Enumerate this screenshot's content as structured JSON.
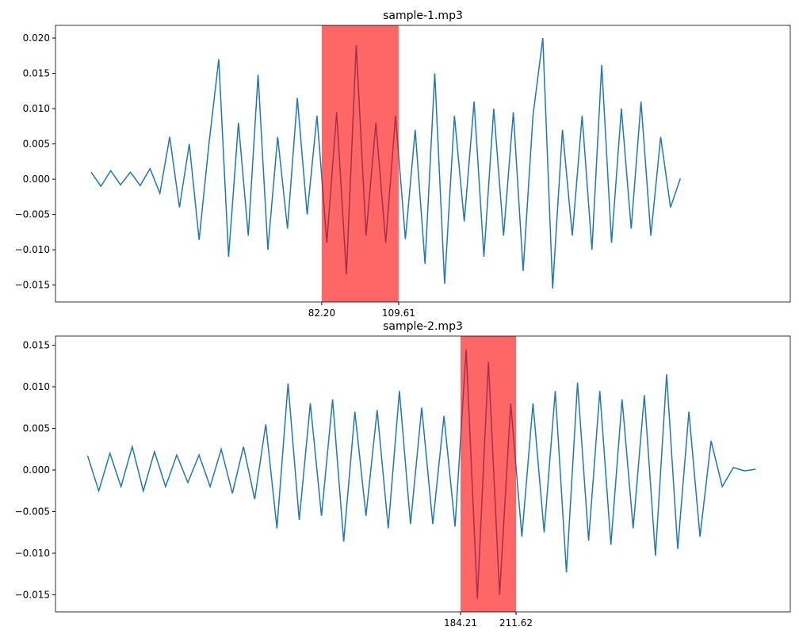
{
  "chart_data": [
    {
      "type": "line",
      "title": "sample-1.mp3",
      "color": "#1f77b4",
      "x": [
        0,
        3.5,
        7,
        10.5,
        14,
        17.5,
        21,
        24.5,
        28,
        31.5,
        35,
        38.5,
        42,
        45.5,
        49,
        52.5,
        56,
        59.5,
        63,
        66.5,
        70,
        73.5,
        77,
        80.5,
        84,
        87.5,
        91,
        94.5,
        98,
        101.5,
        105,
        108.5,
        112,
        115.5,
        119,
        122.5,
        126,
        129.5,
        133,
        136.5,
        140,
        143.5,
        147,
        150.5,
        154,
        157.5,
        161,
        164.5,
        168,
        171.5,
        175,
        178.5,
        182,
        185.5,
        189,
        192.5,
        196,
        199.5,
        203,
        206.5,
        210
      ],
      "values": [
        0.001,
        -0.001,
        0.0012,
        -0.0008,
        0.001,
        -0.0009,
        0.0015,
        -0.002,
        0.006,
        -0.004,
        0.005,
        -0.0086,
        0.005,
        0.017,
        -0.011,
        0.008,
        -0.008,
        0.0148,
        -0.01,
        0.006,
        -0.007,
        0.0115,
        -0.005,
        0.009,
        -0.009,
        0.0095,
        -0.0135,
        0.019,
        -0.008,
        0.008,
        -0.009,
        0.009,
        -0.0085,
        0.007,
        -0.012,
        0.015,
        -0.0148,
        0.009,
        -0.006,
        0.011,
        -0.011,
        0.01,
        -0.008,
        0.0095,
        -0.013,
        0.009,
        0.02,
        -0.0155,
        0.007,
        -0.008,
        0.009,
        -0.01,
        0.0162,
        -0.009,
        0.01,
        -0.007,
        0.011,
        -0.008,
        0.006,
        -0.004,
        0.0001
      ],
      "xlim": [
        -12.7,
        249.2
      ],
      "ylim": [
        -0.0174,
        0.0218
      ],
      "xticks": [
        {
          "value": 82.2,
          "label": "82.20"
        },
        109.61
      ],
      "yticks": [
        {
          "value": -0.015,
          "label": "−0.015"
        },
        {
          "value": -0.01,
          "label": "−0.010"
        },
        {
          "value": -0.005,
          "label": "−0.005"
        },
        {
          "value": 0,
          "label": "0.000"
        },
        {
          "value": 0.005,
          "label": "0.005"
        },
        {
          "value": 0.01,
          "label": "0.010"
        },
        {
          "value": 0.015,
          "label": "0.015"
        },
        {
          "value": 0.02,
          "label": "0.020"
        }
      ],
      "span": [
        82.2,
        109.61
      ],
      "span_color": "#ff0000"
    },
    {
      "type": "line",
      "title": "sample-2.mp3",
      "color": "#1f77b4",
      "x": [
        0,
        5.5,
        11,
        16.5,
        22,
        27.5,
        33,
        38.5,
        44,
        49.5,
        55,
        60.5,
        66,
        71.5,
        77,
        82.5,
        88,
        93.5,
        99,
        104.5,
        110,
        115.5,
        121,
        126.5,
        132,
        137.5,
        143,
        148.5,
        154,
        159.5,
        165,
        170.5,
        176,
        181.5,
        187,
        192.5,
        198,
        203.5,
        209,
        214.5,
        220,
        225.5,
        231,
        236.5,
        242,
        247.5,
        253,
        258.5,
        264,
        269.5,
        275,
        280.5,
        286,
        291.5,
        297,
        302.5,
        308,
        313.5,
        319,
        324.5,
        330
      ],
      "values": [
        0.0017,
        -0.0025,
        0.002,
        -0.002,
        0.0028,
        -0.0025,
        0.0022,
        -0.002,
        0.0018,
        -0.0015,
        0.0018,
        -0.002,
        0.0025,
        -0.0028,
        0.0028,
        -0.0035,
        0.0055,
        -0.007,
        0.0104,
        -0.006,
        0.008,
        -0.0055,
        0.0085,
        -0.0086,
        0.007,
        -0.0055,
        0.0072,
        -0.007,
        0.0095,
        -0.0065,
        0.0075,
        -0.0065,
        0.0065,
        -0.0068,
        0.0145,
        -0.0155,
        0.013,
        -0.015,
        0.008,
        -0.008,
        0.008,
        -0.0075,
        0.0095,
        -0.0123,
        0.0105,
        -0.0085,
        0.0095,
        -0.009,
        0.0085,
        -0.007,
        0.009,
        -0.0103,
        0.0115,
        -0.0095,
        0.007,
        -0.008,
        0.0035,
        -0.002,
        0.0003,
        -0.0001,
        0.0001
      ],
      "xlim": [
        -15.9,
        347.1
      ],
      "ylim": [
        -0.01705,
        0.0161
      ],
      "xticks": [
        184.21,
        211.62
      ],
      "yticks": [
        {
          "value": -0.015,
          "label": "−0.015"
        },
        {
          "value": -0.01,
          "label": "−0.010"
        },
        {
          "value": -0.005,
          "label": "−0.005"
        },
        {
          "value": 0,
          "label": "0.000"
        },
        {
          "value": 0.005,
          "label": "0.005"
        },
        {
          "value": 0.01,
          "label": "0.010"
        },
        {
          "value": 0.015,
          "label": "0.015"
        }
      ],
      "span": [
        184.21,
        211.62
      ],
      "span_color": "#ff0000"
    }
  ]
}
